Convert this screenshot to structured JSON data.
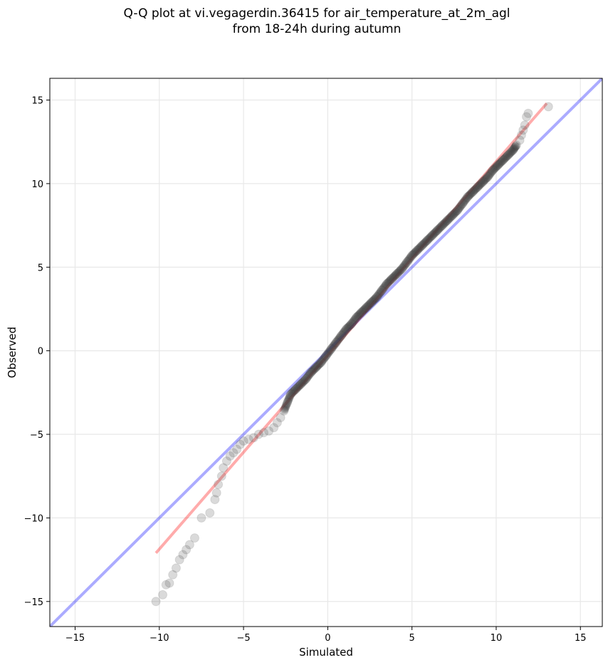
{
  "chart_data": {
    "type": "scatter",
    "title_line1": "Q-Q plot at vi.vegagerdin.36415 for air_temperature_at_2m_agl",
    "title_line2": "from 18-24h during autumn",
    "xlabel": "Simulated",
    "ylabel": "Observed",
    "xlim": [
      -16.5,
      16.3
    ],
    "ylim": [
      -16.5,
      16.3
    ],
    "xticks": [
      -15,
      -10,
      -5,
      0,
      5,
      10,
      15
    ],
    "yticks": [
      -15,
      -10,
      -5,
      0,
      5,
      10,
      15
    ],
    "xtick_labels": [
      "−15",
      "−10",
      "−5",
      "0",
      "5",
      "10",
      "15"
    ],
    "ytick_labels": [
      "−15",
      "−10",
      "−5",
      "0",
      "5",
      "10",
      "15"
    ],
    "grid": true,
    "reference_line": {
      "name": "1:1 line",
      "color": "#0000ff",
      "points": [
        [
          -16.5,
          -16.5
        ],
        [
          16.3,
          16.3
        ]
      ]
    },
    "fit_line": {
      "name": "fit",
      "color": "#ff0000",
      "points": [
        [
          -10.2,
          -12.1
        ],
        [
          13.0,
          14.8
        ]
      ]
    },
    "points": [
      [
        -10.2,
        -15.0
      ],
      [
        -9.8,
        -14.6
      ],
      [
        -9.6,
        -14.0
      ],
      [
        -9.4,
        -13.9
      ],
      [
        -9.2,
        -13.4
      ],
      [
        -9.0,
        -13.0
      ],
      [
        -8.8,
        -12.5
      ],
      [
        -8.6,
        -12.2
      ],
      [
        -8.4,
        -11.9
      ],
      [
        -8.2,
        -11.6
      ],
      [
        -7.9,
        -11.2
      ],
      [
        -7.5,
        -10.0
      ],
      [
        -7.0,
        -9.7
      ],
      [
        -6.7,
        -8.9
      ],
      [
        -6.6,
        -8.5
      ],
      [
        -6.5,
        -8.0
      ],
      [
        -6.3,
        -7.5
      ],
      [
        -6.2,
        -7.0
      ],
      [
        -6.0,
        -6.6
      ],
      [
        -5.8,
        -6.3
      ],
      [
        -5.6,
        -6.1
      ],
      [
        -5.4,
        -5.9
      ],
      [
        -5.2,
        -5.6
      ],
      [
        -5.0,
        -5.4
      ],
      [
        -4.7,
        -5.3
      ],
      [
        -4.4,
        -5.2
      ],
      [
        -4.1,
        -5.0
      ],
      [
        -3.8,
        -4.9
      ],
      [
        -3.5,
        -4.8
      ],
      [
        -3.2,
        -4.6
      ],
      [
        -3.0,
        -4.3
      ],
      [
        -2.8,
        -4.0
      ],
      [
        -2.6,
        -3.6
      ],
      [
        -2.4,
        -3.1
      ],
      [
        -2.2,
        -2.6
      ],
      [
        -1.9,
        -2.3
      ],
      [
        -1.6,
        -2.0
      ],
      [
        -1.3,
        -1.7
      ],
      [
        -1.0,
        -1.3
      ],
      [
        -0.7,
        -1.0
      ],
      [
        -0.4,
        -0.7
      ],
      [
        -0.1,
        -0.3
      ],
      [
        0.2,
        0.1
      ],
      [
        0.5,
        0.5
      ],
      [
        0.8,
        0.9
      ],
      [
        1.1,
        1.3
      ],
      [
        1.4,
        1.6
      ],
      [
        1.7,
        2.0
      ],
      [
        2.0,
        2.3
      ],
      [
        2.3,
        2.6
      ],
      [
        2.6,
        2.9
      ],
      [
        2.9,
        3.2
      ],
      [
        3.2,
        3.6
      ],
      [
        3.5,
        4.0
      ],
      [
        3.8,
        4.3
      ],
      [
        4.1,
        4.6
      ],
      [
        4.4,
        4.9
      ],
      [
        4.7,
        5.3
      ],
      [
        5.0,
        5.7
      ],
      [
        5.3,
        6.0
      ],
      [
        5.6,
        6.3
      ],
      [
        5.9,
        6.6
      ],
      [
        6.2,
        6.9
      ],
      [
        6.5,
        7.2
      ],
      [
        6.8,
        7.5
      ],
      [
        7.1,
        7.8
      ],
      [
        7.4,
        8.1
      ],
      [
        7.7,
        8.4
      ],
      [
        8.0,
        8.8
      ],
      [
        8.3,
        9.2
      ],
      [
        8.6,
        9.5
      ],
      [
        8.9,
        9.8
      ],
      [
        9.2,
        10.1
      ],
      [
        9.5,
        10.4
      ],
      [
        9.8,
        10.8
      ],
      [
        10.1,
        11.1
      ],
      [
        10.4,
        11.4
      ],
      [
        10.7,
        11.7
      ],
      [
        11.0,
        12.0
      ],
      [
        11.2,
        12.3
      ],
      [
        11.4,
        12.6
      ],
      [
        11.5,
        12.9
      ],
      [
        11.6,
        13.2
      ],
      [
        11.7,
        13.5
      ],
      [
        11.8,
        14.0
      ],
      [
        11.9,
        14.2
      ],
      [
        13.1,
        14.6
      ]
    ]
  }
}
